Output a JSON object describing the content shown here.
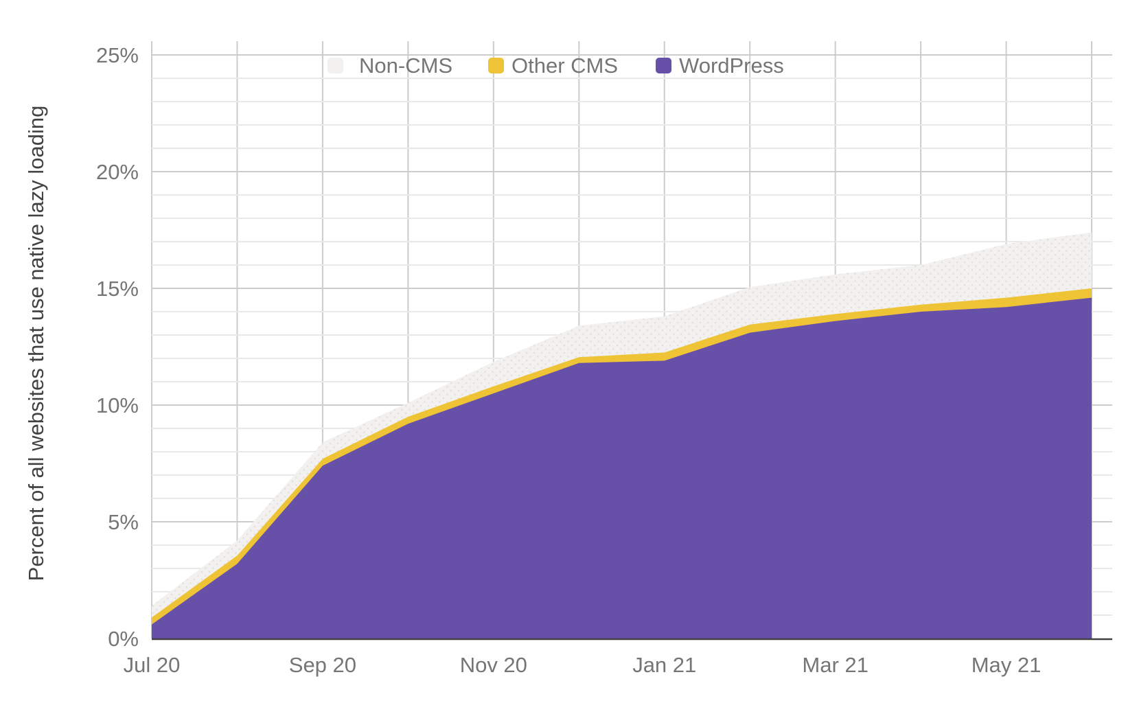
{
  "chart_data": {
    "type": "area",
    "stacked": true,
    "title": "",
    "y_axis_title": "Percent of all websites that use native lazy loading",
    "x": [
      "Jul 20",
      "Aug 20",
      "Sep 20",
      "Oct 20",
      "Nov 20",
      "Dec 20",
      "Jan 21",
      "Feb 21",
      "Mar 21",
      "Apr 21",
      "May 21",
      "Jun 21"
    ],
    "x_tick_labels": [
      "Jul 20",
      "Sep 20",
      "Nov 20",
      "Jan 21",
      "Mar 21",
      "May 21"
    ],
    "x_tick_month_indices": [
      0,
      2,
      4,
      6,
      8,
      10
    ],
    "y_tick_labels": [
      "0%",
      "5%",
      "10%",
      "15%",
      "20%",
      "25%"
    ],
    "ylim": [
      0,
      25
    ],
    "y_major_step": 5,
    "y_minor_step": 1,
    "grid": "on",
    "legend_position": "top",
    "series": [
      {
        "name": "WordPress",
        "color": "#6650a8",
        "values": [
          0.6,
          3.2,
          7.4,
          9.2,
          10.5,
          11.8,
          11.9,
          13.1,
          13.6,
          14.0,
          14.2,
          14.6
        ]
      },
      {
        "name": "Other CMS",
        "color": "#eec336",
        "values": [
          0.3,
          0.35,
          0.3,
          0.3,
          0.3,
          0.25,
          0.35,
          0.35,
          0.3,
          0.3,
          0.4,
          0.4
        ]
      },
      {
        "name": "Non-CMS",
        "color": "#f2f1ef",
        "pattern": "dots",
        "pattern_dot_color": "#e2dfdb",
        "values": [
          0.5,
          0.65,
          0.7,
          0.6,
          1.05,
          1.35,
          1.55,
          1.6,
          1.7,
          1.7,
          2.3,
          2.4
        ]
      }
    ],
    "stacked_totals": [
      1.4,
      4.2,
      8.4,
      10.1,
      11.85,
      13.4,
      13.8,
      15.05,
      15.6,
      16.0,
      16.9,
      17.4
    ],
    "legend": [
      {
        "label": "Non-CMS",
        "color": "#f2f1ef"
      },
      {
        "label": "Other CMS",
        "color": "#eec336"
      },
      {
        "label": "WordPress",
        "color": "#6650a8"
      }
    ],
    "colors": {
      "axis_text": "#757575",
      "axis_title_text": "#424242",
      "gridline_major": "#cccccc",
      "gridline_minor": "#e9e9e9",
      "baseline": "#424242",
      "background": "#ffffff"
    }
  }
}
